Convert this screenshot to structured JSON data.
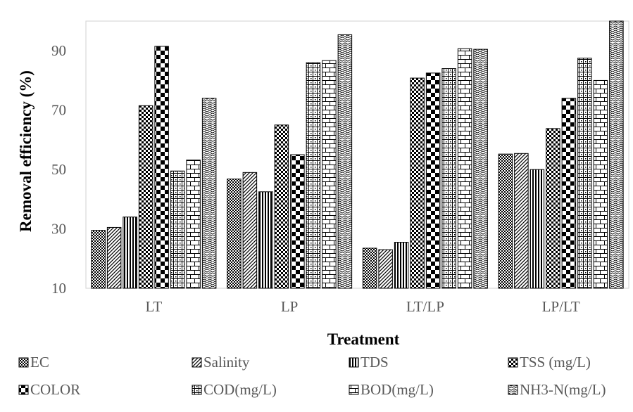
{
  "chart_data": {
    "type": "bar",
    "title": "",
    "xlabel": "Treatment",
    "ylabel": "Removal efficiency (%)",
    "categories": [
      "LT",
      "LP",
      "LT/LP",
      "LP/LT"
    ],
    "ylim": [
      10,
      100
    ],
    "yticks": [
      10,
      30,
      50,
      70,
      90
    ],
    "grid": false,
    "legend_position": "bottom",
    "series": [
      {
        "name": "EC",
        "values": [
          29.5,
          46.8,
          23.5,
          55.2
        ],
        "pattern": "dots"
      },
      {
        "name": "Salinity",
        "values": [
          30.5,
          49.0,
          23.0,
          55.4
        ],
        "pattern": "diagonal"
      },
      {
        "name": "TDS",
        "values": [
          34.0,
          42.5,
          25.5,
          50.0
        ],
        "pattern": "vertical"
      },
      {
        "name": "TSS (mg/L)",
        "values": [
          71.5,
          65.0,
          80.8,
          63.8
        ],
        "pattern": "fine-check"
      },
      {
        "name": "COLOR",
        "values": [
          91.5,
          55.0,
          82.5,
          74.0
        ],
        "pattern": "large-check"
      },
      {
        "name": "COD(mg/L)",
        "values": [
          49.5,
          86.0,
          84.0,
          87.5
        ],
        "pattern": "grid-dots"
      },
      {
        "name": "BOD(mg/L)",
        "values": [
          53.2,
          86.7,
          90.7,
          80.0
        ],
        "pattern": "brick"
      },
      {
        "name": "NH3-N(mg/L)",
        "values": [
          74.0,
          95.4,
          90.5,
          100.0
        ],
        "pattern": "wave"
      }
    ]
  }
}
